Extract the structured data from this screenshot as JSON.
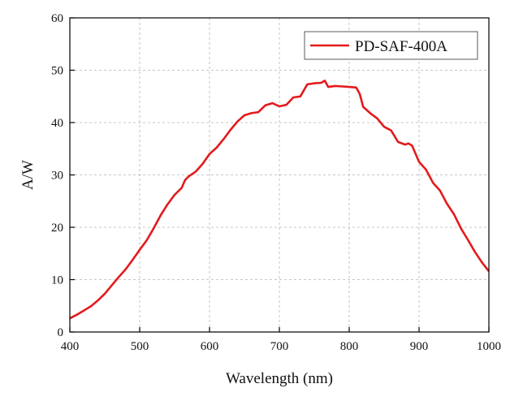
{
  "chart_data": {
    "type": "line",
    "xlabel": "Wavelength (nm)",
    "ylabel": "A/W",
    "xlim": [
      400,
      1000
    ],
    "ylim": [
      0,
      60
    ],
    "xticks": [
      400,
      500,
      600,
      700,
      800,
      900,
      1000
    ],
    "yticks": [
      0,
      10,
      20,
      30,
      40,
      50,
      60
    ],
    "grid": true,
    "legend_position": "top-right",
    "series": [
      {
        "name": "PD-SAF-400A",
        "color": "#e31a1c",
        "x": [
          400,
          410,
          420,
          430,
          440,
          450,
          460,
          470,
          480,
          490,
          500,
          510,
          520,
          530,
          540,
          550,
          560,
          565,
          570,
          580,
          590,
          600,
          610,
          620,
          630,
          640,
          650,
          660,
          670,
          680,
          690,
          700,
          710,
          720,
          730,
          740,
          750,
          760,
          765,
          770,
          780,
          790,
          800,
          810,
          815,
          820,
          830,
          840,
          850,
          860,
          870,
          880,
          885,
          890,
          900,
          910,
          920,
          930,
          940,
          950,
          960,
          970,
          980,
          990,
          1000
        ],
        "values": [
          2.6,
          3.3,
          4.1,
          4.9,
          6.0,
          7.3,
          8.9,
          10.5,
          12.0,
          13.8,
          15.7,
          17.5,
          19.8,
          22.3,
          24.4,
          26.2,
          27.5,
          29.0,
          29.7,
          30.6,
          32.1,
          34.0,
          35.2,
          36.8,
          38.6,
          40.2,
          41.4,
          41.8,
          42.0,
          43.3,
          43.7,
          43.1,
          43.4,
          44.8,
          45.0,
          47.3,
          47.5,
          47.6,
          48.0,
          46.8,
          47.0,
          46.9,
          46.8,
          46.7,
          45.5,
          43.0,
          41.8,
          40.8,
          39.2,
          38.5,
          36.3,
          35.8,
          36.0,
          35.6,
          32.5,
          31.0,
          28.5,
          27.0,
          24.5,
          22.5,
          19.8,
          17.6,
          15.3,
          13.3,
          11.6
        ]
      }
    ]
  }
}
